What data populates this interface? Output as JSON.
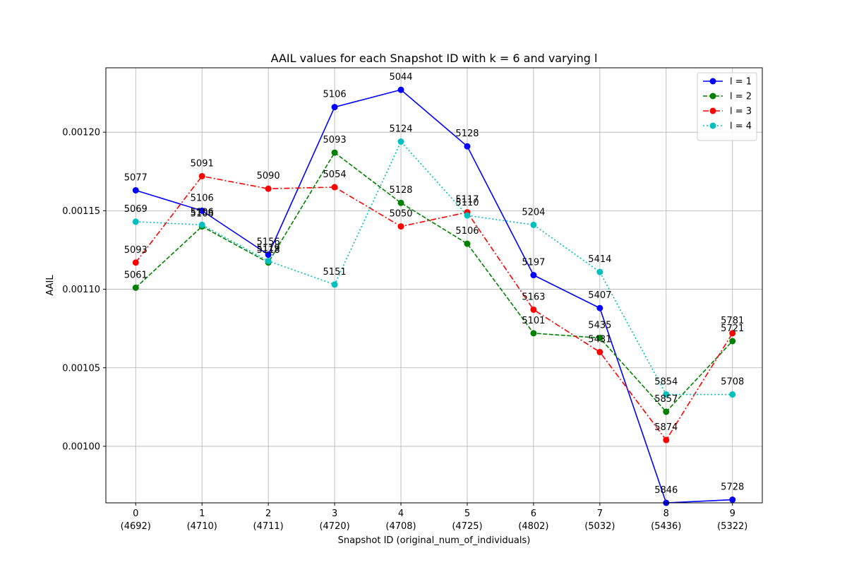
{
  "chart_data": {
    "type": "line",
    "title": "AAIL values for each Snapshot ID with k = 6 and varying l",
    "xlabel": "Snapshot ID (original_num_of_individuals)",
    "ylabel": "AAIL",
    "x": [
      0,
      1,
      2,
      3,
      4,
      5,
      6,
      7,
      8,
      9
    ],
    "x_tick_labels": [
      [
        "0",
        "(4692)"
      ],
      [
        "1",
        "(4710)"
      ],
      [
        "2",
        "(4711)"
      ],
      [
        "3",
        "(4720)"
      ],
      [
        "4",
        "(4708)"
      ],
      [
        "5",
        "(4725)"
      ],
      [
        "6",
        "(4802)"
      ],
      [
        "7",
        "(5032)"
      ],
      [
        "8",
        "(5436)"
      ],
      [
        "9",
        "(5322)"
      ]
    ],
    "xlim": [
      -0.45,
      9.45
    ],
    "ylim": [
      0.000964,
      0.001241
    ],
    "y_ticks": [
      0.001,
      0.00105,
      0.0011,
      0.00115,
      0.0012
    ],
    "y_tick_labels": [
      "0.00100",
      "0.00105",
      "0.00110",
      "0.00115",
      "0.00120"
    ],
    "grid": true,
    "legend_position": "top-right",
    "series": [
      {
        "name": "l = 1",
        "color": "#0000ff",
        "dash": "solid",
        "values": [
          0.001163,
          0.00115,
          0.001122,
          0.001216,
          0.001227,
          0.001191,
          0.001109,
          0.001088,
          0.000964,
          0.000966
        ],
        "point_labels": [
          "5077",
          "5106",
          "5156",
          "5106",
          "5044",
          "5128",
          "5197",
          "5407",
          "5846",
          "5728"
        ]
      },
      {
        "name": "l = 2",
        "color": "#008000",
        "dash": "dashed",
        "values": [
          0.001101,
          0.00114,
          0.001117,
          0.001187,
          0.001155,
          0.001129,
          0.001072,
          0.001069,
          0.001022,
          0.001067
        ],
        "point_labels": [
          "5061",
          "5108",
          "5118",
          "5093",
          "5128",
          "5106",
          "5101",
          "5435",
          "5857",
          "5721"
        ]
      },
      {
        "name": "l = 3",
        "color": "#ff0000",
        "dash": "dashdot",
        "values": [
          0.001117,
          0.001172,
          0.001164,
          0.001165,
          0.00114,
          0.001149,
          0.001087,
          0.00106,
          0.001004,
          0.001072
        ],
        "point_labels": [
          "5093",
          "5091",
          "5090",
          "5054",
          "5050",
          "5117",
          "5163",
          "5431",
          "5874",
          "5781"
        ]
      },
      {
        "name": "l = 4",
        "color": "#00bfbf",
        "dash": "dotted",
        "values": [
          0.001143,
          0.001141,
          0.001118,
          0.001103,
          0.001194,
          0.001147,
          0.001141,
          0.001111,
          0.001033,
          0.001033
        ],
        "point_labels": [
          "5069",
          "5106",
          "5119",
          "5151",
          "5124",
          "5110",
          "5204",
          "5414",
          "5854",
          "5708"
        ]
      }
    ]
  }
}
